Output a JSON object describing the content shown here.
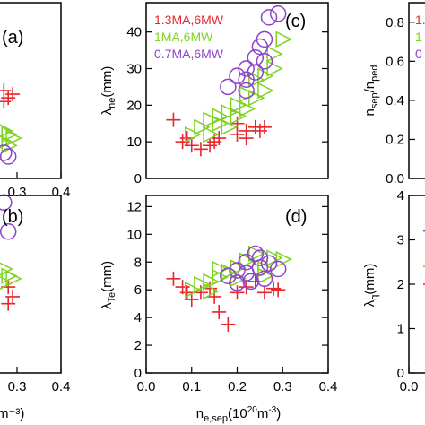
{
  "colors": {
    "s1": "#e8262e",
    "s2": "#7ed321",
    "s3": "#8e44c8",
    "axis": "#000000"
  },
  "chart_data": [
    {
      "id": "a",
      "type": "scatter",
      "panel_label": "(a)",
      "xlim": [
        0,
        0.4
      ],
      "x_tick_labels": [
        "0.3",
        "0.4"
      ],
      "series": [
        {
          "marker": "plus",
          "color": "s1",
          "points": [
            [
              0.27,
              24
            ],
            [
              0.28,
              22
            ],
            [
              0.27,
              21
            ],
            [
              0.29,
              23
            ]
          ]
        },
        {
          "marker": "triangle",
          "color": "s2",
          "points": [
            [
              0.27,
              13
            ],
            [
              0.28,
              12
            ],
            [
              0.27,
              10
            ],
            [
              0.29,
              11
            ],
            [
              0.28,
              9
            ]
          ]
        },
        {
          "marker": "circle",
          "color": "s3",
          "points": [
            [
              0.27,
              7
            ],
            [
              0.28,
              6
            ]
          ]
        }
      ]
    },
    {
      "id": "b",
      "type": "scatter",
      "panel_label": "(b)",
      "xlim": [
        0,
        0.4
      ],
      "x_tick_labels": [
        "0.3",
        "0.4"
      ],
      "xlabel_fragment": "m⁻³)",
      "series": [
        {
          "marker": "plus",
          "color": "s1",
          "points": [
            [
              0.28,
              6.2
            ],
            [
              0.29,
              5.5
            ],
            [
              0.28,
              5.0
            ]
          ]
        },
        {
          "marker": "triangle",
          "color": "s2",
          "points": [
            [
              0.27,
              7.5
            ],
            [
              0.28,
              7.0
            ],
            [
              0.27,
              6.5
            ],
            [
              0.29,
              6.8
            ]
          ]
        },
        {
          "marker": "circle",
          "color": "s3",
          "points": [
            [
              0.27,
              12.3
            ],
            [
              0.28,
              10.2
            ]
          ]
        }
      ]
    },
    {
      "id": "c",
      "type": "scatter",
      "panel_label": "(c)",
      "ylabel": "λne(mm)",
      "xlim": [
        0,
        0.4
      ],
      "ylim": [
        0,
        48
      ],
      "y_ticks": [
        0,
        10,
        20,
        30,
        40
      ],
      "legend": [
        {
          "label": "1.3MA,6MW",
          "color": "s1"
        },
        {
          "label": "1MA,6MW",
          "color": "s2"
        },
        {
          "label": "0.7MA,6MW",
          "color": "s3"
        }
      ],
      "series": [
        {
          "name": "1.3MA,6MW",
          "marker": "plus",
          "color": "s1",
          "points": [
            [
              0.06,
              16
            ],
            [
              0.08,
              10
            ],
            [
              0.09,
              11
            ],
            [
              0.1,
              9
            ],
            [
              0.12,
              8
            ],
            [
              0.14,
              9
            ],
            [
              0.15,
              10
            ],
            [
              0.16,
              11
            ],
            [
              0.2,
              12
            ],
            [
              0.2,
              15
            ],
            [
              0.22,
              13
            ],
            [
              0.24,
              14
            ],
            [
              0.25,
              13
            ],
            [
              0.26,
              14
            ],
            [
              0.22,
              11
            ]
          ]
        },
        {
          "name": "1MA,6MW",
          "marker": "triangle",
          "color": "s2",
          "points": [
            [
              0.1,
              12
            ],
            [
              0.12,
              14
            ],
            [
              0.14,
              16
            ],
            [
              0.16,
              17
            ],
            [
              0.18,
              18
            ],
            [
              0.2,
              17
            ],
            [
              0.22,
              19
            ],
            [
              0.24,
              22
            ],
            [
              0.26,
              24
            ],
            [
              0.26,
              28
            ],
            [
              0.28,
              34
            ],
            [
              0.3,
              38
            ],
            [
              0.22,
              23
            ],
            [
              0.2,
              20
            ],
            [
              0.24,
              27
            ],
            [
              0.14,
              12
            ],
            [
              0.16,
              15
            ],
            [
              0.18,
              14
            ],
            [
              0.28,
              30
            ]
          ]
        },
        {
          "name": "0.7MA,6MW",
          "marker": "circle",
          "color": "s3",
          "points": [
            [
              0.18,
              25
            ],
            [
              0.2,
              28
            ],
            [
              0.22,
              30
            ],
            [
              0.22,
              27
            ],
            [
              0.24,
              33
            ],
            [
              0.25,
              36
            ],
            [
              0.26,
              38
            ],
            [
              0.27,
              44
            ],
            [
              0.29,
              45
            ],
            [
              0.26,
              32
            ],
            [
              0.24,
              29
            ],
            [
              0.22,
              24
            ]
          ]
        }
      ]
    },
    {
      "id": "d",
      "type": "scatter",
      "panel_label": "(d)",
      "ylabel": "λTe(mm)",
      "xlabel": "ne,sep(10²⁰m⁻³)",
      "xlim": [
        0,
        0.4
      ],
      "ylim": [
        0,
        12.8
      ],
      "x_ticks": [
        0.0,
        0.1,
        0.2,
        0.3,
        0.4
      ],
      "x_tick_labels": [
        "0.0",
        "0.1",
        "0.2",
        "0.3",
        "0.4"
      ],
      "y_ticks": [
        0,
        2,
        4,
        6,
        8,
        10,
        12
      ],
      "series": [
        {
          "marker": "plus",
          "color": "s1",
          "points": [
            [
              0.06,
              6.8
            ],
            [
              0.08,
              6.2
            ],
            [
              0.09,
              5.8
            ],
            [
              0.1,
              5.3
            ],
            [
              0.12,
              5.8
            ],
            [
              0.14,
              6.1
            ],
            [
              0.15,
              5.5
            ],
            [
              0.16,
              4.4
            ],
            [
              0.18,
              3.5
            ],
            [
              0.2,
              5.8
            ],
            [
              0.22,
              6.2
            ],
            [
              0.24,
              6.6
            ],
            [
              0.26,
              5.8
            ],
            [
              0.28,
              6.1
            ],
            [
              0.29,
              6.0
            ]
          ]
        },
        {
          "marker": "triangle",
          "color": "s2",
          "points": [
            [
              0.1,
              6.0
            ],
            [
              0.12,
              6.4
            ],
            [
              0.14,
              6.6
            ],
            [
              0.16,
              6.9
            ],
            [
              0.18,
              7.3
            ],
            [
              0.2,
              7.6
            ],
            [
              0.22,
              8.1
            ],
            [
              0.24,
              8.6
            ],
            [
              0.26,
              7.5
            ],
            [
              0.28,
              8.3
            ],
            [
              0.3,
              8.2
            ],
            [
              0.26,
              7.0
            ],
            [
              0.2,
              6.8
            ],
            [
              0.16,
              7.5
            ],
            [
              0.14,
              5.9
            ]
          ]
        },
        {
          "marker": "circle",
          "color": "s3",
          "points": [
            [
              0.18,
              7.0
            ],
            [
              0.2,
              7.4
            ],
            [
              0.22,
              8.0
            ],
            [
              0.22,
              7.2
            ],
            [
              0.24,
              8.6
            ],
            [
              0.25,
              7.6
            ],
            [
              0.26,
              6.8
            ],
            [
              0.27,
              7.9
            ],
            [
              0.29,
              7.5
            ],
            [
              0.23,
              6.6
            ],
            [
              0.2,
              6.5
            ],
            [
              0.25,
              8.3
            ]
          ]
        }
      ]
    },
    {
      "id": "e",
      "type": "scatter",
      "ylabel": "nsep/nped",
      "ylim": [
        0,
        0.9
      ],
      "y_ticks": [
        0.0,
        0.2,
        0.4,
        0.6,
        0.8
      ],
      "y_tick_labels": [
        "0.0",
        "0.2",
        "0.4",
        "0.6",
        "0.8"
      ],
      "legend_fragments": [
        {
          "label": "1.",
          "color": "s1"
        },
        {
          "label": "1",
          "color": "s2"
        },
        {
          "label": "0",
          "color": "s3"
        }
      ]
    },
    {
      "id": "f",
      "type": "scatter",
      "ylabel": "λq(mm)",
      "ylim": [
        0,
        4
      ],
      "y_ticks": [
        0,
        1,
        2,
        3,
        4
      ],
      "x_tick_labels": [
        "0.0"
      ],
      "series": [
        {
          "marker": "dash",
          "color": "s3",
          "points": [
            [
              0.05,
              3.2
            ]
          ]
        },
        {
          "marker": "dash",
          "color": "s2",
          "points": [
            [
              0.05,
              2.4
            ]
          ]
        },
        {
          "marker": "dash",
          "color": "s1",
          "points": [
            [
              0.05,
              2.0
            ]
          ]
        }
      ]
    }
  ]
}
